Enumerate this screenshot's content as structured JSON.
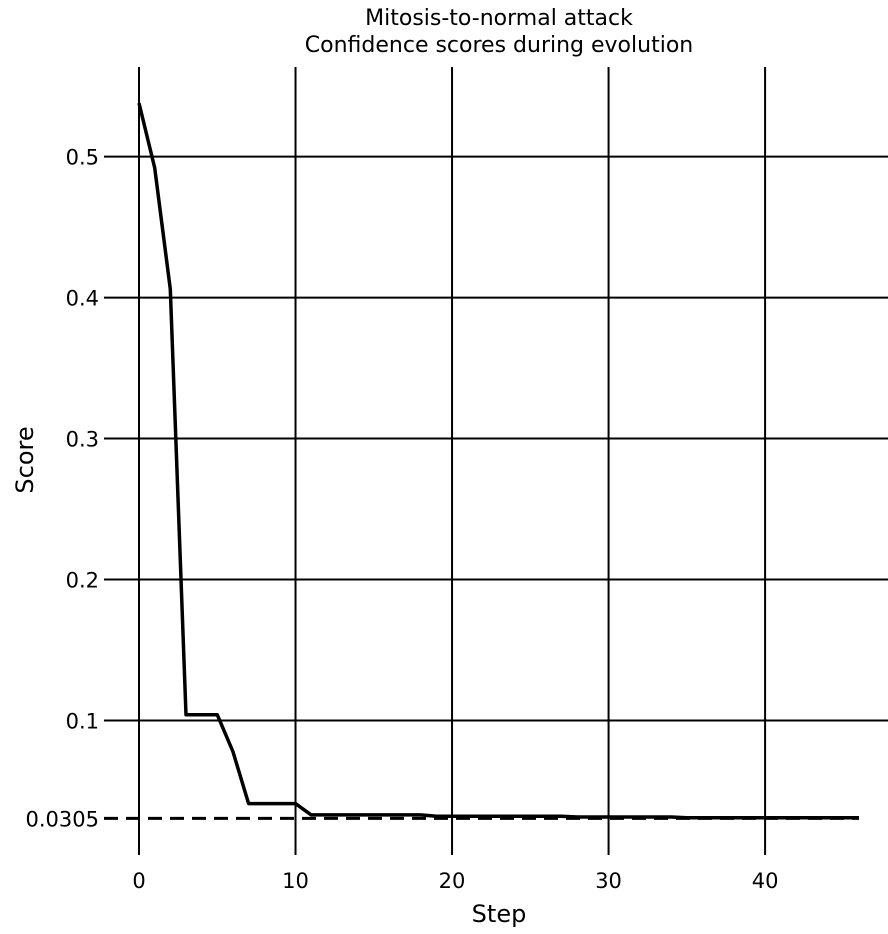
{
  "chart_data": {
    "type": "line",
    "title": "Mitosis-to-normal attack",
    "subtitle": "Confidence scores during evolution",
    "xlabel": "Step",
    "ylabel": "Score",
    "xlim": [
      0,
      46
    ],
    "ylim": [
      0.0305,
      0.54
    ],
    "xticks": [
      0,
      10,
      20,
      30,
      40
    ],
    "xtick_labels": [
      "0",
      "10",
      "20",
      "30",
      "40"
    ],
    "yticks": [
      0.0305,
      0.1,
      0.2,
      0.3,
      0.4,
      0.5
    ],
    "ytick_labels": [
      "0.0305",
      "0.1",
      "0.2",
      "0.3",
      "0.4",
      "0.5"
    ],
    "grid": true,
    "threshold": 0.0305,
    "series": [
      {
        "color": "#000000",
        "x": [
          0,
          1,
          2,
          3,
          4,
          5,
          6,
          7,
          8,
          9,
          10,
          11,
          12,
          13,
          14,
          15,
          16,
          17,
          18,
          19,
          20,
          21,
          22,
          23,
          24,
          25,
          26,
          27,
          28,
          29,
          30,
          31,
          32,
          33,
          34,
          35,
          36,
          37,
          38,
          39,
          40,
          41,
          42,
          43,
          44,
          45,
          46
        ],
        "y": [
          0.538,
          0.492,
          0.406,
          0.104,
          0.104,
          0.104,
          0.078,
          0.041,
          0.041,
          0.041,
          0.041,
          0.033,
          0.033,
          0.033,
          0.033,
          0.033,
          0.033,
          0.033,
          0.033,
          0.032,
          0.032,
          0.032,
          0.032,
          0.032,
          0.032,
          0.032,
          0.032,
          0.032,
          0.0315,
          0.0315,
          0.0315,
          0.0315,
          0.0315,
          0.0315,
          0.0315,
          0.031,
          0.031,
          0.031,
          0.031,
          0.031,
          0.031,
          0.031,
          0.031,
          0.031,
          0.031,
          0.031,
          0.031
        ]
      }
    ]
  }
}
